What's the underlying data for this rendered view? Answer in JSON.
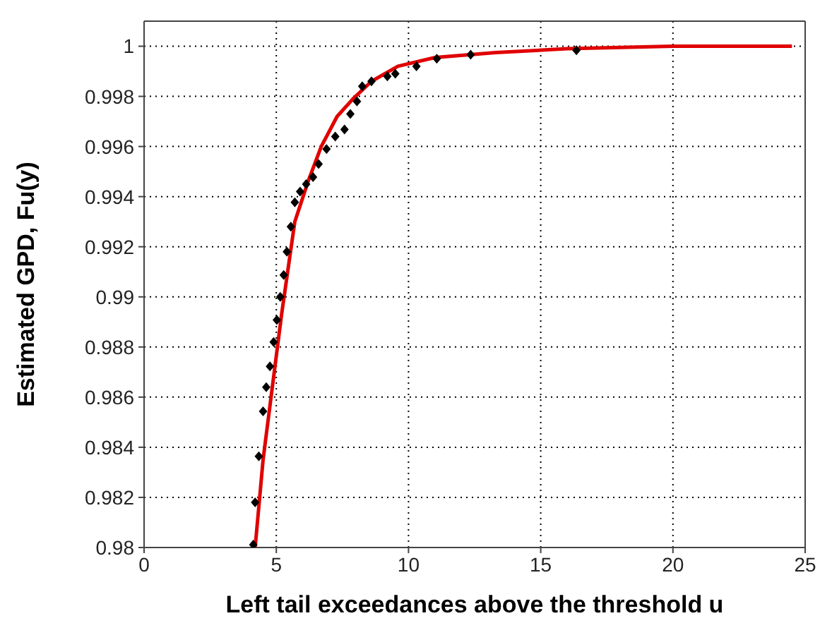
{
  "chart_data": {
    "type": "scatter",
    "xlabel": "Left tail exceedances above the threshold u",
    "ylabel": "Estimated GPD, Fu(y)",
    "xlim": [
      0,
      25
    ],
    "xticks": [
      0,
      5,
      10,
      15,
      20,
      25
    ],
    "ylim": [
      0.98,
      1.001
    ],
    "yticks": [
      0.98,
      0.982,
      0.984,
      0.986,
      0.988,
      0.99,
      0.992,
      0.994,
      0.996,
      0.998,
      1
    ],
    "grid": true,
    "legend": false,
    "series": [
      {
        "color": "#000000",
        "marker": "diamond",
        "x": [
          4.13,
          4.2,
          4.34,
          4.5,
          4.62,
          4.76,
          4.9,
          5.02,
          5.15,
          5.28,
          5.4,
          5.55,
          5.7,
          5.9,
          6.13,
          6.39,
          6.6,
          6.9,
          7.23,
          7.58,
          7.8,
          8.05,
          8.25,
          8.6,
          9.2,
          9.5,
          10.3,
          11.07,
          12.35,
          16.35
        ],
        "values": [
          0.98011,
          0.9818,
          0.98364,
          0.98543,
          0.9864,
          0.98723,
          0.9882,
          0.98908,
          0.99,
          0.99087,
          0.9918,
          0.9928,
          0.99377,
          0.9942,
          0.9945,
          0.99478,
          0.9953,
          0.9959,
          0.9964,
          0.99668,
          0.9973,
          0.9978,
          0.9984,
          0.9986,
          0.9988,
          0.9989,
          0.9992,
          0.9995,
          0.99966,
          0.99984
        ]
      },
      {
        "type": "line",
        "color": "#e00000",
        "marker": "none",
        "line_style": "solid",
        "x": [
          4.2,
          4.5,
          4.85,
          5.2,
          5.7,
          6.2,
          6.7,
          7.3,
          7.9,
          8.6,
          9.6,
          11,
          13.3,
          16,
          20,
          24.5
        ],
        "values": [
          0.98,
          0.9835,
          0.9864,
          0.9893,
          0.993,
          0.9946,
          0.996,
          0.9972,
          0.9979,
          0.9986,
          0.9992,
          0.99955,
          0.99975,
          0.9999,
          1,
          1
        ]
      }
    ]
  }
}
